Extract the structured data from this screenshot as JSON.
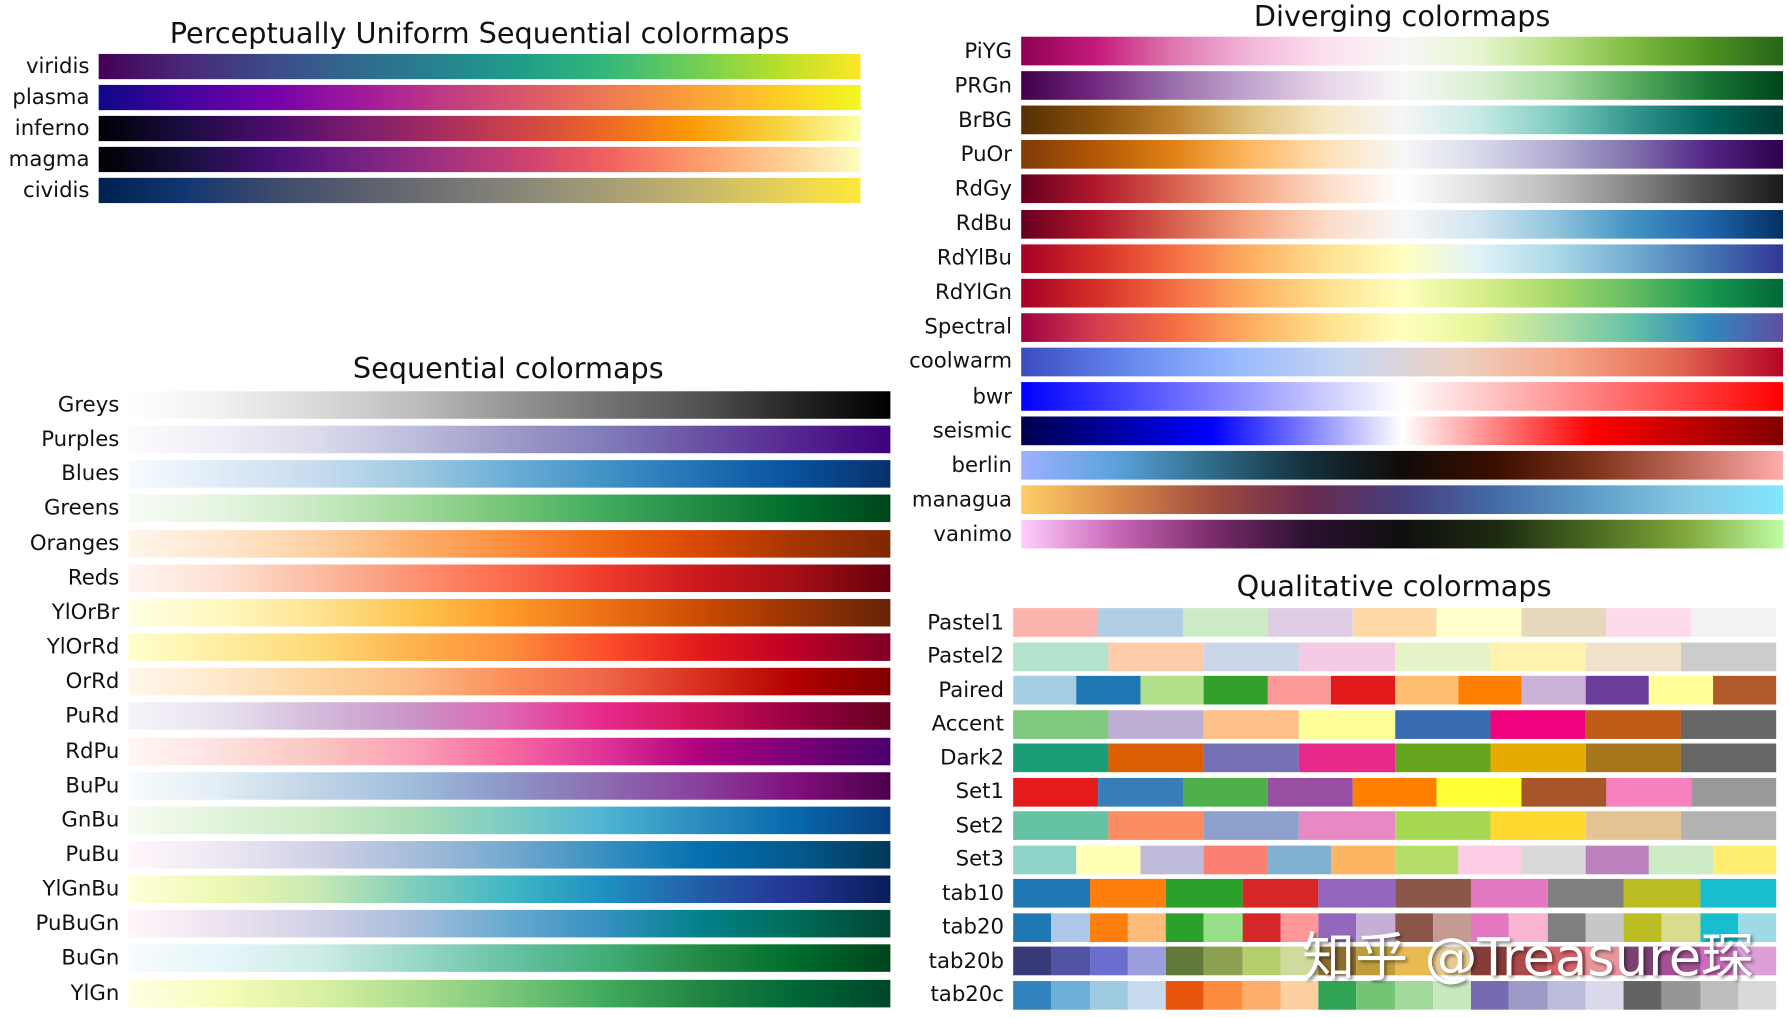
{
  "chart_data": [
    {
      "type": "colormap-strips",
      "title": "Perceptually Uniform Sequential colormaps",
      "colormaps": [
        {
          "name": "viridis",
          "colors": [
            "#440154",
            "#482878",
            "#3e4989",
            "#31688e",
            "#26828e",
            "#1f9e89",
            "#35b779",
            "#6ece58",
            "#b5de2b",
            "#fde725"
          ]
        },
        {
          "name": "plasma",
          "colors": [
            "#0d0887",
            "#46039f",
            "#7201a8",
            "#9c179e",
            "#bd3786",
            "#d8576b",
            "#ed7953",
            "#fb9f3a",
            "#fdca26",
            "#f0f921"
          ]
        },
        {
          "name": "inferno",
          "colors": [
            "#000004",
            "#1b0c41",
            "#4a0c6b",
            "#781c6d",
            "#a52c60",
            "#cf4446",
            "#ed6925",
            "#fb9b06",
            "#f7d13d",
            "#fcffa4"
          ]
        },
        {
          "name": "magma",
          "colors": [
            "#000004",
            "#180f3d",
            "#440f76",
            "#721f81",
            "#9e2f7f",
            "#cd4071",
            "#f1605d",
            "#fd9668",
            "#feca8d",
            "#fcfdbf"
          ]
        },
        {
          "name": "cividis",
          "colors": [
            "#00224e",
            "#123570",
            "#3b496c",
            "#575d6d",
            "#707173",
            "#8a8779",
            "#a69d75",
            "#c4b56c",
            "#e4cf5b",
            "#fee838"
          ]
        }
      ]
    },
    {
      "type": "colormap-strips",
      "title": "Sequential colormaps",
      "colormaps": [
        {
          "name": "Greys",
          "colors": [
            "#ffffff",
            "#f0f0f0",
            "#d9d9d9",
            "#bdbdbd",
            "#969696",
            "#737373",
            "#525252",
            "#252525",
            "#000000"
          ]
        },
        {
          "name": "Purples",
          "colors": [
            "#fcfbfd",
            "#efedf5",
            "#dadaeb",
            "#bcbddc",
            "#9e9ac8",
            "#807dba",
            "#6a51a3",
            "#54278f",
            "#3f007d"
          ]
        },
        {
          "name": "Blues",
          "colors": [
            "#f7fbff",
            "#deebf7",
            "#c6dbef",
            "#9ecae1",
            "#6baed6",
            "#4292c6",
            "#2171b5",
            "#08519c",
            "#08306b"
          ]
        },
        {
          "name": "Greens",
          "colors": [
            "#f7fcf5",
            "#e5f5e0",
            "#c7e9c0",
            "#a1d99b",
            "#74c476",
            "#41ab5d",
            "#238b45",
            "#006d2c",
            "#00441b"
          ]
        },
        {
          "name": "Oranges",
          "colors": [
            "#fff5eb",
            "#fee6ce",
            "#fdd0a2",
            "#fdae6b",
            "#fd8d3c",
            "#f16913",
            "#d94801",
            "#a63603",
            "#7f2704"
          ]
        },
        {
          "name": "Reds",
          "colors": [
            "#fff5f0",
            "#fee0d2",
            "#fcbba1",
            "#fc9272",
            "#fb6a4a",
            "#ef3b2c",
            "#cb181d",
            "#a50f15",
            "#67000d"
          ]
        },
        {
          "name": "YlOrBr",
          "colors": [
            "#ffffe5",
            "#fff7bc",
            "#fee391",
            "#fec44f",
            "#fe9929",
            "#ec7014",
            "#cc4c02",
            "#993404",
            "#662506"
          ]
        },
        {
          "name": "YlOrRd",
          "colors": [
            "#ffffcc",
            "#ffeda0",
            "#fed976",
            "#feb24c",
            "#fd8d3c",
            "#fc4e2a",
            "#e31a1c",
            "#bd0026",
            "#800026"
          ]
        },
        {
          "name": "OrRd",
          "colors": [
            "#fff7ec",
            "#fee8c8",
            "#fdd49e",
            "#fdbb84",
            "#fc8d59",
            "#ef6548",
            "#d7301f",
            "#b30000",
            "#7f0000"
          ]
        },
        {
          "name": "PuRd",
          "colors": [
            "#f7f4f9",
            "#e7e1ef",
            "#d4b9da",
            "#c994c7",
            "#df65b0",
            "#e7298a",
            "#ce1256",
            "#980043",
            "#67001f"
          ]
        },
        {
          "name": "RdPu",
          "colors": [
            "#fff7f3",
            "#fde0dd",
            "#fcc5c0",
            "#fa9fb5",
            "#f768a1",
            "#dd3497",
            "#ae017e",
            "#7a0177",
            "#49006a"
          ]
        },
        {
          "name": "BuPu",
          "colors": [
            "#f7fcfd",
            "#e0ecf4",
            "#bfd3e6",
            "#9ebcda",
            "#8c96c6",
            "#8c6bb1",
            "#88419d",
            "#810f7c",
            "#4d004b"
          ]
        },
        {
          "name": "GnBu",
          "colors": [
            "#f7fcf0",
            "#e0f3db",
            "#ccebc5",
            "#a8ddb5",
            "#7bccc4",
            "#4eb3d3",
            "#2b8cbe",
            "#0868ac",
            "#084081"
          ]
        },
        {
          "name": "PuBu",
          "colors": [
            "#fff7fb",
            "#ece7f2",
            "#d0d1e6",
            "#a6bddb",
            "#74a9cf",
            "#3690c0",
            "#0570b0",
            "#045a8d",
            "#023858"
          ]
        },
        {
          "name": "YlGnBu",
          "colors": [
            "#ffffd9",
            "#edf8b1",
            "#c7e9b4",
            "#7fcdbb",
            "#41b6c4",
            "#1d91c0",
            "#225ea8",
            "#253494",
            "#081d58"
          ]
        },
        {
          "name": "PuBuGn",
          "colors": [
            "#fff7fb",
            "#ece2f0",
            "#d0d1e6",
            "#a6bddb",
            "#67a9cf",
            "#3690c0",
            "#02818a",
            "#016c59",
            "#014636"
          ]
        },
        {
          "name": "BuGn",
          "colors": [
            "#f7fcfd",
            "#e5f5f9",
            "#ccece6",
            "#99d8c9",
            "#66c2a4",
            "#41ae76",
            "#238b45",
            "#006d2c",
            "#00441b"
          ]
        },
        {
          "name": "YlGn",
          "colors": [
            "#ffffe5",
            "#f7fcb9",
            "#d9f0a3",
            "#addd8e",
            "#78c679",
            "#41ab5d",
            "#238443",
            "#006837",
            "#004529"
          ]
        }
      ]
    },
    {
      "type": "colormap-strips",
      "title": "Diverging colormaps",
      "colormaps": [
        {
          "name": "PiYG",
          "colors": [
            "#8e0152",
            "#c51b7d",
            "#de77ae",
            "#f1b6da",
            "#fde0ef",
            "#f7f7f7",
            "#e6f5d0",
            "#b8e186",
            "#7fbc41",
            "#4d9221",
            "#276419"
          ]
        },
        {
          "name": "PRGn",
          "colors": [
            "#40004b",
            "#762a83",
            "#9970ab",
            "#c2a5cf",
            "#e7d4e8",
            "#f7f7f7",
            "#d9f0d3",
            "#a6dba0",
            "#5aae61",
            "#1b7837",
            "#00441b"
          ]
        },
        {
          "name": "BrBG",
          "colors": [
            "#543005",
            "#8c510a",
            "#bf812d",
            "#dfc27d",
            "#f6e8c3",
            "#f5f5f5",
            "#c7eae5",
            "#80cdc1",
            "#35978f",
            "#01665e",
            "#003c30"
          ]
        },
        {
          "name": "PuOr",
          "colors": [
            "#7f3b08",
            "#b35806",
            "#e08214",
            "#fdb863",
            "#fee0b6",
            "#f7f7f7",
            "#d8daeb",
            "#b2abd2",
            "#8073ac",
            "#542788",
            "#2d004b"
          ]
        },
        {
          "name": "RdGy",
          "colors": [
            "#67001f",
            "#b2182b",
            "#d6604d",
            "#f4a582",
            "#fddbc7",
            "#ffffff",
            "#e0e0e0",
            "#bababa",
            "#878787",
            "#4d4d4d",
            "#1a1a1a"
          ]
        },
        {
          "name": "RdBu",
          "colors": [
            "#67001f",
            "#b2182b",
            "#d6604d",
            "#f4a582",
            "#fddbc7",
            "#f7f7f7",
            "#d1e5f0",
            "#92c5de",
            "#4393c3",
            "#2166ac",
            "#053061"
          ]
        },
        {
          "name": "RdYlBu",
          "colors": [
            "#a50026",
            "#d73027",
            "#f46d43",
            "#fdae61",
            "#fee090",
            "#ffffbf",
            "#e0f3f8",
            "#abd9e9",
            "#74add1",
            "#4575b4",
            "#313695"
          ]
        },
        {
          "name": "RdYlGn",
          "colors": [
            "#a50026",
            "#d73027",
            "#f46d43",
            "#fdae61",
            "#fee08b",
            "#ffffbf",
            "#d9ef8b",
            "#a6d96a",
            "#66bd63",
            "#1a9850",
            "#006837"
          ]
        },
        {
          "name": "Spectral",
          "colors": [
            "#9e0142",
            "#d53e4f",
            "#f46d43",
            "#fdae61",
            "#fee08b",
            "#ffffbf",
            "#e6f598",
            "#abdda4",
            "#66c2a5",
            "#3288bd",
            "#5e4fa2"
          ]
        },
        {
          "name": "coolwarm",
          "colors": [
            "#3b4cc0",
            "#6788ee",
            "#9abbff",
            "#c9d7f0",
            "#edd1c2",
            "#f7a889",
            "#e26952",
            "#b40426"
          ]
        },
        {
          "name": "bwr",
          "colors": [
            "#0000ff",
            "#ffffff",
            "#ff0000"
          ]
        },
        {
          "name": "seismic",
          "colors": [
            "#00004c",
            "#0000ff",
            "#ffffff",
            "#ff0000",
            "#800000"
          ]
        },
        {
          "name": "berlin",
          "colors": [
            "#9eb0ff",
            "#5aa2db",
            "#2f6b87",
            "#14303c",
            "#110b09",
            "#3c0f00",
            "#7d321a",
            "#c06b5c",
            "#ffacac"
          ]
        },
        {
          "name": "managua",
          "colors": [
            "#ffcf67",
            "#d98a4a",
            "#a04c3f",
            "#6a2b4f",
            "#463d7c",
            "#456ca8",
            "#5e9dc7",
            "#86c8e4",
            "#82e6ff"
          ]
        },
        {
          "name": "vanimo",
          "colors": [
            "#ffcdfd",
            "#c867b6",
            "#7c2c6c",
            "#2c1131",
            "#0f0f0e",
            "#1d2b10",
            "#4a6a21",
            "#82a93c",
            "#befda5"
          ]
        }
      ]
    },
    {
      "type": "colormap-swatches",
      "title": "Qualitative colormaps",
      "colormaps": [
        {
          "name": "Pastel1",
          "colors": [
            "#fbb4ae",
            "#b3cde3",
            "#ccebc5",
            "#decbe4",
            "#fed9a6",
            "#ffffcc",
            "#e5d8bd",
            "#fddaec",
            "#f2f2f2"
          ]
        },
        {
          "name": "Pastel2",
          "colors": [
            "#b3e2cd",
            "#fdcdac",
            "#cbd5e8",
            "#f4cae4",
            "#e6f5c9",
            "#fff2ae",
            "#f1e2cc",
            "#cccccc"
          ]
        },
        {
          "name": "Paired",
          "colors": [
            "#a6cee3",
            "#1f78b4",
            "#b2df8a",
            "#33a02c",
            "#fb9a99",
            "#e31a1c",
            "#fdbf6f",
            "#ff7f00",
            "#cab2d6",
            "#6a3d9a",
            "#ffff99",
            "#b15928"
          ]
        },
        {
          "name": "Accent",
          "colors": [
            "#7fc97f",
            "#beaed4",
            "#fdc086",
            "#ffff99",
            "#386cb0",
            "#f0027f",
            "#bf5b17",
            "#666666"
          ]
        },
        {
          "name": "Dark2",
          "colors": [
            "#1b9e77",
            "#d95f02",
            "#7570b3",
            "#e7298a",
            "#66a61e",
            "#e6ab02",
            "#a6761d",
            "#666666"
          ]
        },
        {
          "name": "Set1",
          "colors": [
            "#e41a1c",
            "#377eb8",
            "#4daf4a",
            "#984ea3",
            "#ff7f00",
            "#ffff33",
            "#a65628",
            "#f781bf",
            "#999999"
          ]
        },
        {
          "name": "Set2",
          "colors": [
            "#66c2a5",
            "#fc8d62",
            "#8da0cb",
            "#e78ac3",
            "#a6d854",
            "#ffd92f",
            "#e5c494",
            "#b3b3b3"
          ]
        },
        {
          "name": "Set3",
          "colors": [
            "#8dd3c7",
            "#ffffb3",
            "#bebada",
            "#fb8072",
            "#80b1d3",
            "#fdb462",
            "#b3de69",
            "#fccde5",
            "#d9d9d9",
            "#bc80bd",
            "#ccebc5",
            "#ffed6f"
          ]
        },
        {
          "name": "tab10",
          "colors": [
            "#1f77b4",
            "#ff7f0e",
            "#2ca02c",
            "#d62728",
            "#9467bd",
            "#8c564b",
            "#e377c2",
            "#7f7f7f",
            "#bcbd22",
            "#17becf"
          ]
        },
        {
          "name": "tab20",
          "colors": [
            "#1f77b4",
            "#aec7e8",
            "#ff7f0e",
            "#ffbb78",
            "#2ca02c",
            "#98df8a",
            "#d62728",
            "#ff9896",
            "#9467bd",
            "#c5b0d5",
            "#8c564b",
            "#c49c94",
            "#e377c2",
            "#f7b6d2",
            "#7f7f7f",
            "#c7c7c7",
            "#bcbd22",
            "#dbdb8d",
            "#17becf",
            "#9edae5"
          ]
        },
        {
          "name": "tab20b",
          "colors": [
            "#393b79",
            "#5254a3",
            "#6b6ecf",
            "#9c9ede",
            "#637939",
            "#8ca252",
            "#b5cf6b",
            "#cedb9c",
            "#8c6d31",
            "#bd9e39",
            "#e7ba52",
            "#e7cb94",
            "#843c39",
            "#ad494a",
            "#d6616b",
            "#e7969c",
            "#7b4173",
            "#a55194",
            "#ce6dbd",
            "#de9ed6"
          ]
        },
        {
          "name": "tab20c",
          "colors": [
            "#3182bd",
            "#6baed6",
            "#9ecae1",
            "#c6dbef",
            "#e6550d",
            "#fd8d3c",
            "#fdae6b",
            "#fdd0a2",
            "#31a354",
            "#74c476",
            "#a1d99b",
            "#c7e9c0",
            "#756bb1",
            "#9e9ac8",
            "#bcbddc",
            "#dadaeb",
            "#636363",
            "#969696",
            "#bdbdbd",
            "#d9d9d9"
          ]
        }
      ]
    }
  ],
  "watermark": "知乎 @Treasure琛"
}
